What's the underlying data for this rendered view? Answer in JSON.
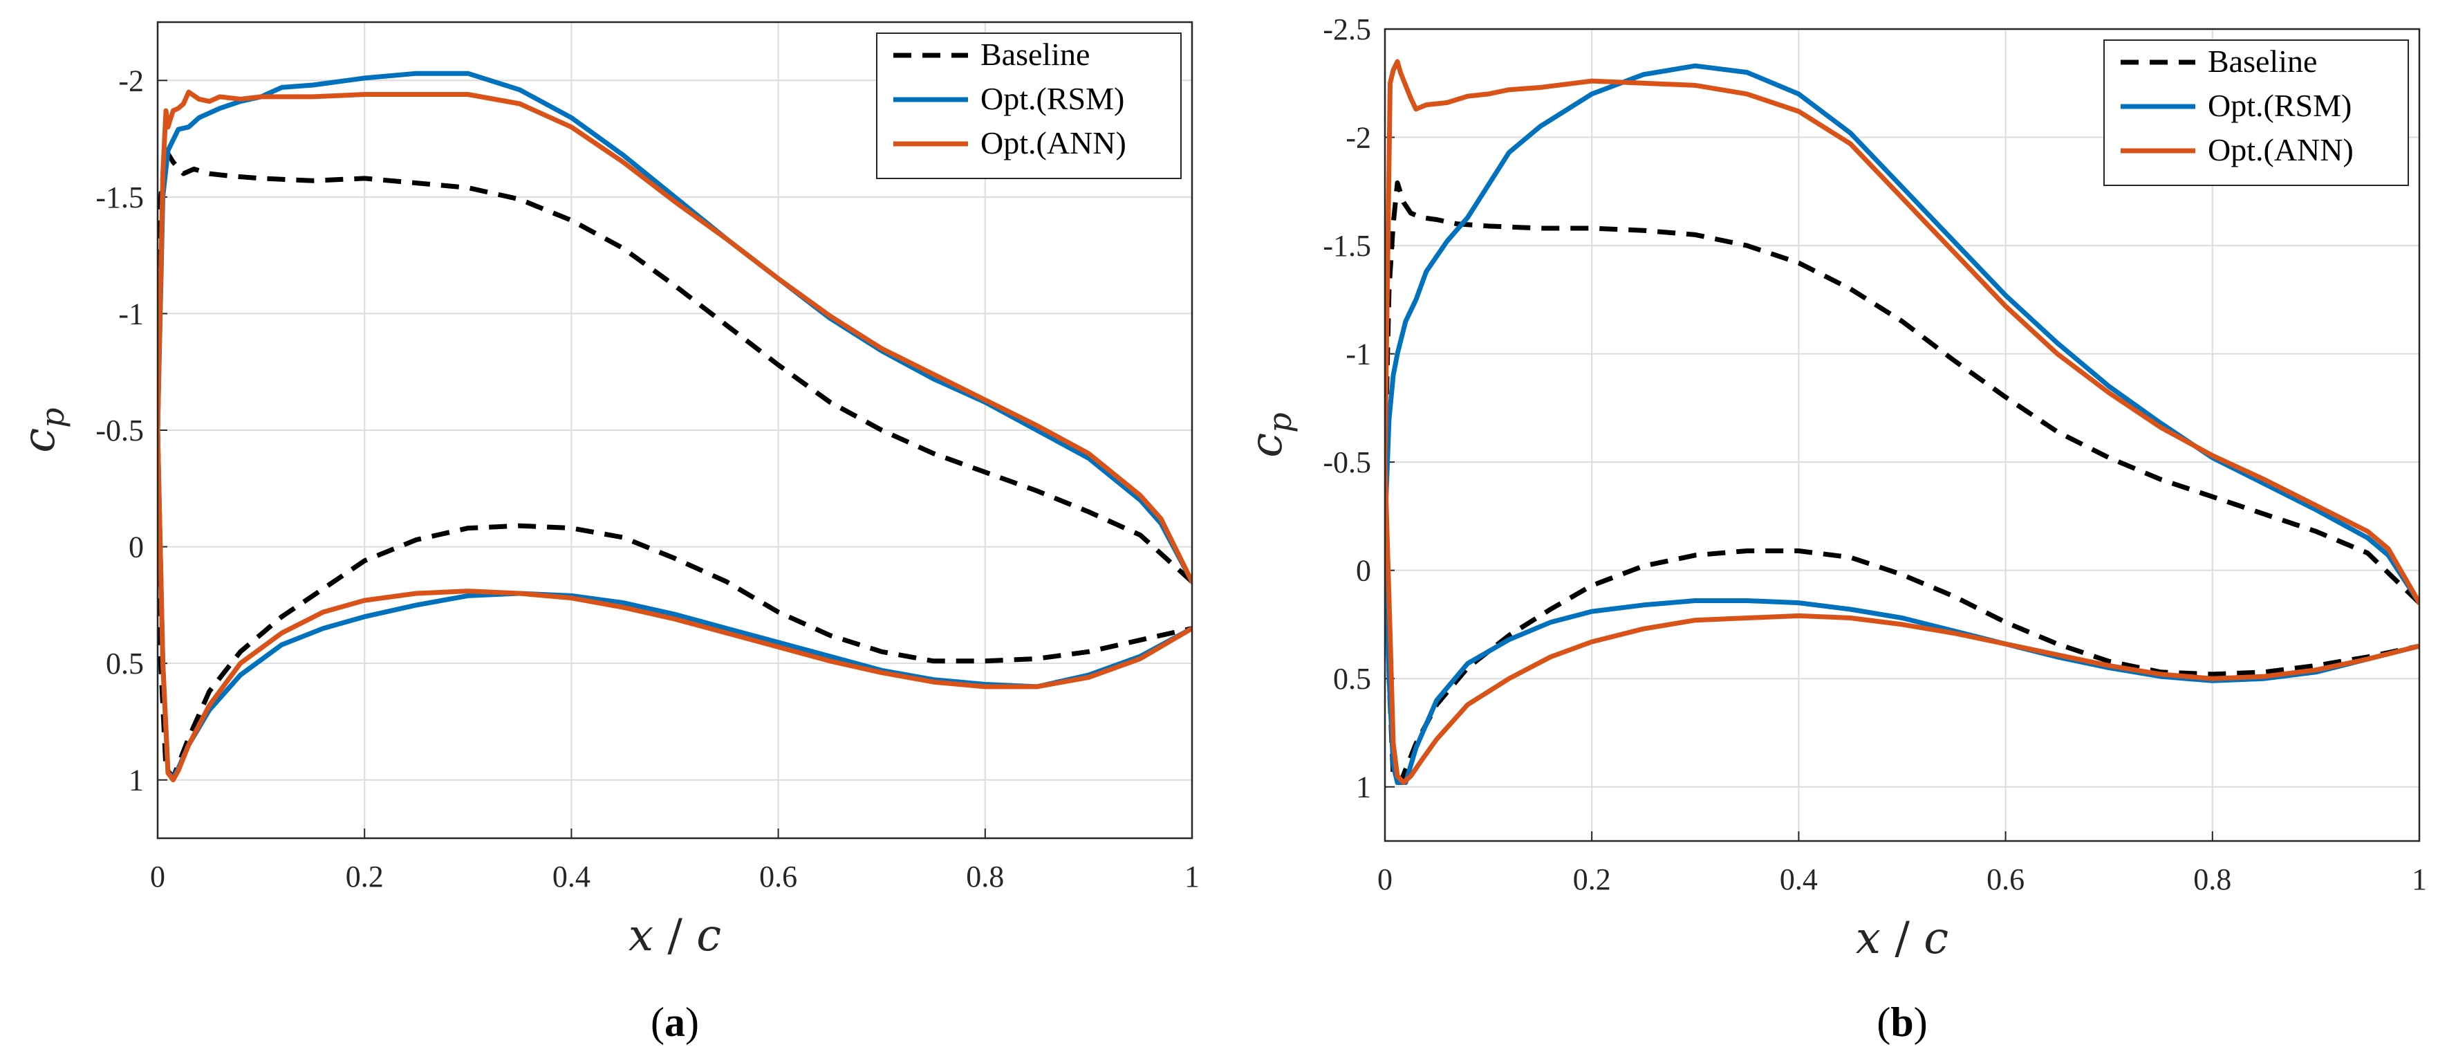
{
  "chart_data": [
    {
      "type": "line",
      "panel_label": "(a)",
      "xlabel": "x/c",
      "ylabel": "c_p",
      "xlim": [
        0,
        1
      ],
      "ylim": [
        -2.25,
        1.25
      ],
      "y_reversed": true,
      "grid": true,
      "legend_position": "top-right",
      "x_ticks": [
        "0",
        "0.2",
        "0.4",
        "0.6",
        "0.8",
        "1"
      ],
      "y_ticks": [
        "-2",
        "-1.5",
        "-1",
        "-0.5",
        "0",
        "0.5",
        "1"
      ],
      "series": [
        {
          "name": "Baseline",
          "color": "#000000",
          "dash": true,
          "x": [
            1.0,
            0.95,
            0.9,
            0.85,
            0.8,
            0.75,
            0.7,
            0.65,
            0.6,
            0.55,
            0.5,
            0.45,
            0.4,
            0.35,
            0.3,
            0.25,
            0.2,
            0.15,
            0.1,
            0.07,
            0.05,
            0.035,
            0.025,
            0.015,
            0.008,
            0.003,
            0.0,
            0.003,
            0.008,
            0.015,
            0.03,
            0.05,
            0.08,
            0.12,
            0.16,
            0.2,
            0.25,
            0.3,
            0.35,
            0.4,
            0.45,
            0.5,
            0.55,
            0.6,
            0.65,
            0.7,
            0.75,
            0.8,
            0.85,
            0.9,
            0.95,
            1.0
          ],
          "y": [
            0.15,
            -0.05,
            -0.15,
            -0.24,
            -0.32,
            -0.4,
            -0.5,
            -0.62,
            -0.78,
            -0.95,
            -1.12,
            -1.28,
            -1.4,
            -1.49,
            -1.54,
            -1.56,
            -1.58,
            -1.57,
            -1.58,
            -1.59,
            -1.6,
            -1.62,
            -1.6,
            -1.65,
            -1.7,
            -1.5,
            -0.5,
            0.5,
            0.95,
            0.99,
            0.82,
            0.62,
            0.45,
            0.3,
            0.18,
            0.06,
            -0.03,
            -0.08,
            -0.09,
            -0.08,
            -0.04,
            0.05,
            0.15,
            0.28,
            0.38,
            0.45,
            0.49,
            0.49,
            0.48,
            0.45,
            0.4,
            0.35
          ]
        },
        {
          "name": "Opt.(RSM)",
          "color": "#0072BD",
          "dash": false,
          "x": [
            1.0,
            0.97,
            0.95,
            0.9,
            0.85,
            0.8,
            0.75,
            0.7,
            0.65,
            0.6,
            0.55,
            0.5,
            0.45,
            0.4,
            0.35,
            0.3,
            0.25,
            0.2,
            0.15,
            0.12,
            0.1,
            0.08,
            0.06,
            0.04,
            0.03,
            0.02,
            0.01,
            0.005,
            0.0,
            0.005,
            0.01,
            0.015,
            0.02,
            0.03,
            0.05,
            0.08,
            0.12,
            0.16,
            0.2,
            0.25,
            0.3,
            0.35,
            0.4,
            0.45,
            0.5,
            0.55,
            0.6,
            0.65,
            0.7,
            0.75,
            0.8,
            0.85,
            0.9,
            0.95,
            1.0
          ],
          "y": [
            0.15,
            -0.1,
            -0.2,
            -0.38,
            -0.5,
            -0.62,
            -0.72,
            -0.84,
            -0.98,
            -1.15,
            -1.32,
            -1.5,
            -1.68,
            -1.84,
            -1.96,
            -2.03,
            -2.03,
            -2.01,
            -1.98,
            -1.97,
            -1.93,
            -1.91,
            -1.88,
            -1.84,
            -1.8,
            -1.79,
            -1.7,
            -1.5,
            -0.5,
            0.5,
            0.97,
            0.99,
            0.95,
            0.85,
            0.7,
            0.55,
            0.42,
            0.35,
            0.3,
            0.25,
            0.21,
            0.2,
            0.21,
            0.24,
            0.29,
            0.35,
            0.41,
            0.47,
            0.53,
            0.57,
            0.59,
            0.6,
            0.55,
            0.47,
            0.35
          ]
        },
        {
          "name": "Opt.(ANN)",
          "color": "#D95319",
          "dash": false,
          "x": [
            1.0,
            0.97,
            0.95,
            0.9,
            0.85,
            0.8,
            0.75,
            0.7,
            0.65,
            0.6,
            0.55,
            0.5,
            0.45,
            0.4,
            0.35,
            0.3,
            0.25,
            0.2,
            0.15,
            0.1,
            0.08,
            0.06,
            0.05,
            0.04,
            0.03,
            0.025,
            0.02,
            0.015,
            0.012,
            0.01,
            0.008,
            0.005,
            0.0,
            0.005,
            0.01,
            0.015,
            0.02,
            0.03,
            0.05,
            0.08,
            0.12,
            0.16,
            0.2,
            0.25,
            0.3,
            0.35,
            0.4,
            0.45,
            0.5,
            0.55,
            0.6,
            0.65,
            0.7,
            0.75,
            0.8,
            0.85,
            0.9,
            0.95,
            1.0
          ],
          "y": [
            0.15,
            -0.12,
            -0.22,
            -0.4,
            -0.52,
            -0.63,
            -0.74,
            -0.85,
            -0.99,
            -1.15,
            -1.32,
            -1.48,
            -1.65,
            -1.8,
            -1.9,
            -1.94,
            -1.94,
            -1.94,
            -1.93,
            -1.93,
            -1.92,
            -1.93,
            -1.91,
            -1.92,
            -1.95,
            -1.9,
            -1.88,
            -1.87,
            -1.83,
            -1.8,
            -1.87,
            -1.6,
            -0.5,
            0.5,
            0.97,
            1.0,
            0.96,
            0.85,
            0.68,
            0.5,
            0.37,
            0.28,
            0.23,
            0.2,
            0.19,
            0.2,
            0.22,
            0.26,
            0.31,
            0.37,
            0.43,
            0.49,
            0.54,
            0.58,
            0.6,
            0.6,
            0.56,
            0.48,
            0.35
          ]
        }
      ]
    },
    {
      "type": "line",
      "panel_label": "(b)",
      "xlabel": "x/c",
      "ylabel": "c_p",
      "xlim": [
        0,
        1
      ],
      "ylim": [
        -2.5,
        1.25
      ],
      "y_reversed": true,
      "grid": true,
      "legend_position": "top-right",
      "x_ticks": [
        "0",
        "0.2",
        "0.4",
        "0.6",
        "0.8",
        "1"
      ],
      "y_ticks": [
        "-2.5",
        "-2",
        "-1.5",
        "-1",
        "-0.5",
        "0",
        "0.5",
        "1"
      ],
      "series": [
        {
          "name": "Baseline",
          "color": "#000000",
          "dash": true,
          "x": [
            1.0,
            0.95,
            0.9,
            0.85,
            0.8,
            0.75,
            0.7,
            0.65,
            0.6,
            0.55,
            0.5,
            0.45,
            0.4,
            0.35,
            0.3,
            0.25,
            0.2,
            0.15,
            0.1,
            0.07,
            0.05,
            0.035,
            0.025,
            0.018,
            0.012,
            0.008,
            0.004,
            0.0,
            0.004,
            0.008,
            0.015,
            0.03,
            0.05,
            0.08,
            0.12,
            0.16,
            0.2,
            0.25,
            0.3,
            0.35,
            0.4,
            0.45,
            0.5,
            0.55,
            0.6,
            0.65,
            0.7,
            0.75,
            0.8,
            0.85,
            0.9,
            0.95,
            1.0
          ],
          "y": [
            0.15,
            -0.08,
            -0.18,
            -0.26,
            -0.34,
            -0.42,
            -0.52,
            -0.64,
            -0.8,
            -0.97,
            -1.15,
            -1.3,
            -1.42,
            -1.5,
            -1.55,
            -1.57,
            -1.58,
            -1.58,
            -1.59,
            -1.6,
            -1.62,
            -1.63,
            -1.65,
            -1.7,
            -1.79,
            -1.6,
            -1.3,
            -0.5,
            0.5,
            0.95,
            0.98,
            0.8,
            0.62,
            0.45,
            0.3,
            0.18,
            0.07,
            -0.02,
            -0.07,
            -0.09,
            -0.09,
            -0.06,
            0.02,
            0.12,
            0.24,
            0.34,
            0.42,
            0.47,
            0.48,
            0.47,
            0.44,
            0.4,
            0.35
          ]
        },
        {
          "name": "Opt.(RSM)",
          "color": "#0072BD",
          "dash": false,
          "x": [
            1.0,
            0.97,
            0.95,
            0.9,
            0.85,
            0.8,
            0.75,
            0.7,
            0.65,
            0.6,
            0.55,
            0.5,
            0.45,
            0.4,
            0.35,
            0.3,
            0.25,
            0.2,
            0.15,
            0.12,
            0.1,
            0.08,
            0.06,
            0.04,
            0.03,
            0.02,
            0.012,
            0.008,
            0.004,
            0.0,
            0.004,
            0.008,
            0.012,
            0.02,
            0.03,
            0.05,
            0.08,
            0.12,
            0.16,
            0.2,
            0.25,
            0.3,
            0.35,
            0.4,
            0.45,
            0.5,
            0.55,
            0.6,
            0.65,
            0.7,
            0.75,
            0.8,
            0.85,
            0.9,
            0.95,
            1.0
          ],
          "y": [
            0.15,
            -0.07,
            -0.15,
            -0.28,
            -0.4,
            -0.52,
            -0.68,
            -0.85,
            -1.05,
            -1.27,
            -1.52,
            -1.77,
            -2.02,
            -2.2,
            -2.3,
            -2.33,
            -2.29,
            -2.2,
            -2.05,
            -1.93,
            -1.78,
            -1.63,
            -1.52,
            -1.38,
            -1.25,
            -1.15,
            -1.0,
            -0.9,
            -0.7,
            -0.2,
            0.5,
            0.9,
            0.98,
            0.98,
            0.82,
            0.6,
            0.43,
            0.32,
            0.24,
            0.19,
            0.16,
            0.14,
            0.14,
            0.15,
            0.18,
            0.22,
            0.28,
            0.34,
            0.4,
            0.45,
            0.49,
            0.51,
            0.5,
            0.47,
            0.41,
            0.35
          ]
        },
        {
          "name": "Opt.(ANN)",
          "color": "#D95319",
          "dash": false,
          "x": [
            1.0,
            0.97,
            0.95,
            0.9,
            0.85,
            0.8,
            0.75,
            0.7,
            0.65,
            0.6,
            0.55,
            0.5,
            0.45,
            0.4,
            0.35,
            0.3,
            0.25,
            0.2,
            0.15,
            0.12,
            0.1,
            0.08,
            0.06,
            0.04,
            0.03,
            0.025,
            0.02,
            0.015,
            0.012,
            0.01,
            0.008,
            0.005,
            0.0,
            0.005,
            0.008,
            0.012,
            0.018,
            0.025,
            0.035,
            0.05,
            0.08,
            0.12,
            0.16,
            0.2,
            0.25,
            0.3,
            0.35,
            0.4,
            0.45,
            0.5,
            0.55,
            0.6,
            0.65,
            0.7,
            0.75,
            0.8,
            0.85,
            0.9,
            0.95,
            1.0
          ],
          "y": [
            0.15,
            -0.1,
            -0.18,
            -0.3,
            -0.42,
            -0.53,
            -0.66,
            -0.82,
            -1.0,
            -1.22,
            -1.47,
            -1.72,
            -1.97,
            -2.12,
            -2.2,
            -2.24,
            -2.25,
            -2.26,
            -2.23,
            -2.22,
            -2.2,
            -2.19,
            -2.16,
            -2.15,
            -2.13,
            -2.18,
            -2.24,
            -2.3,
            -2.35,
            -2.33,
            -2.31,
            -2.25,
            -0.5,
            0.3,
            0.8,
            0.95,
            0.98,
            0.95,
            0.88,
            0.78,
            0.62,
            0.5,
            0.4,
            0.33,
            0.27,
            0.23,
            0.22,
            0.21,
            0.22,
            0.25,
            0.29,
            0.34,
            0.39,
            0.44,
            0.48,
            0.5,
            0.49,
            0.46,
            0.41,
            0.35
          ]
        }
      ]
    }
  ]
}
